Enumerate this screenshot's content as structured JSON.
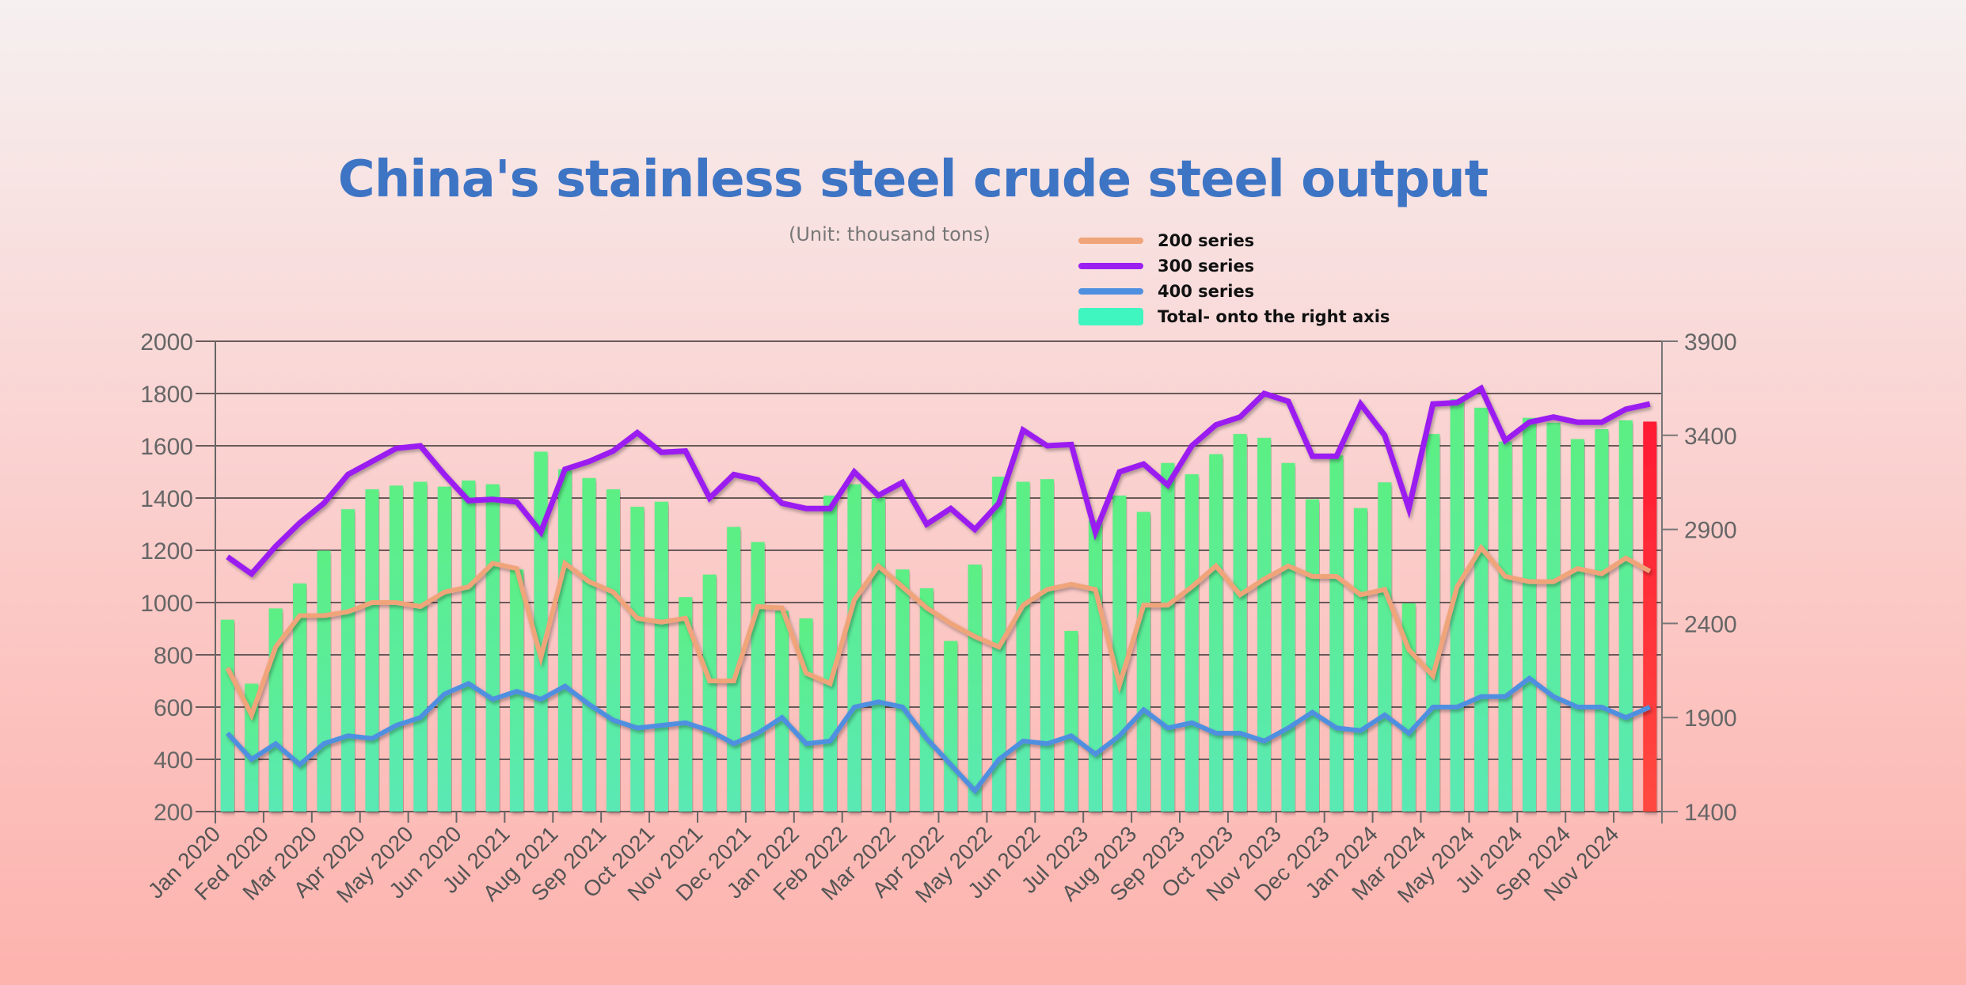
{
  "chart_data": {
    "type": "bar+line",
    "title": "China's stainless steel crude steel output",
    "subtitle": "(Unit: thousand tons)",
    "left_axis": {
      "ylim": [
        200,
        2000
      ],
      "ticks": [
        200,
        400,
        600,
        800,
        1000,
        1200,
        1400,
        1600,
        1800,
        2000
      ]
    },
    "right_axis": {
      "ylim": [
        1400,
        3900
      ],
      "ticks": [
        1400,
        1900,
        2400,
        2900,
        3400,
        3900
      ]
    },
    "x_tick_labels": [
      "Jan 2020",
      "Fed 2020",
      "Mar 2020",
      "Apr 2020",
      "May 2020",
      "Jun 2020",
      "Jul 2021",
      "Aug 2021",
      "Sep 2021",
      "Oct 2021",
      "Nov 2021",
      "Dec 2021",
      "Jan 2022",
      "Feb 2022",
      "Mar 2022",
      "Apr 2022",
      "May 2022",
      "Jun 2022",
      "Jul 2023",
      "Aug 2023",
      "Sep 2023",
      "Oct 2023",
      "Nov 2023",
      "Dec 2023",
      "Jan 2024",
      "Mar 2024",
      "May 2024",
      "Jul 2024",
      "Sep 2024",
      "Nov 2024"
    ],
    "legend_position": "top-right",
    "grid": true,
    "series": [
      {
        "name": "200 series",
        "axis": "left",
        "type": "line",
        "color": "#f0a47a",
        "values": [
          750,
          570,
          830,
          950,
          950,
          965,
          1000,
          1000,
          985,
          1040,
          1060,
          1150,
          1130,
          790,
          1150,
          1080,
          1040,
          940,
          925,
          940,
          700,
          700,
          985,
          980,
          730,
          690,
          1010,
          1140,
          1060,
          980,
          920,
          870,
          830,
          990,
          1050,
          1070,
          1050,
          685,
          990,
          990,
          1060,
          1140,
          1030,
          1090,
          1140,
          1100,
          1100,
          1030,
          1050,
          820,
          720,
          1060,
          1210,
          1100,
          1080,
          1080,
          1130,
          1110,
          1170,
          1120
        ]
      },
      {
        "name": "300 series",
        "axis": "left",
        "type": "line",
        "color": "#9b1ff0",
        "values": [
          1175,
          1110,
          1215,
          1305,
          1380,
          1490,
          1540,
          1590,
          1600,
          1490,
          1390,
          1395,
          1385,
          1270,
          1510,
          1540,
          1580,
          1650,
          1575,
          1580,
          1400,
          1490,
          1470,
          1380,
          1360,
          1360,
          1500,
          1410,
          1460,
          1300,
          1360,
          1280,
          1380,
          1660,
          1600,
          1605,
          1270,
          1500,
          1530,
          1450,
          1600,
          1680,
          1710,
          1800,
          1770,
          1560,
          1560,
          1760,
          1640,
          1360,
          1760,
          1765,
          1820,
          1620,
          1690,
          1710,
          1690,
          1690,
          1740,
          1760
        ]
      },
      {
        "name": "400 series",
        "axis": "left",
        "type": "line",
        "color": "#4f8fe0",
        "values": [
          500,
          400,
          460,
          380,
          460,
          490,
          480,
          530,
          560,
          650,
          690,
          630,
          660,
          630,
          680,
          610,
          550,
          520,
          530,
          540,
          510,
          460,
          500,
          560,
          460,
          470,
          600,
          620,
          600,
          480,
          380,
          280,
          400,
          470,
          460,
          490,
          420,
          490,
          590,
          520,
          540,
          500,
          500,
          470,
          520,
          580,
          520,
          510,
          570,
          500,
          600,
          600,
          640,
          640,
          710,
          640,
          600,
          600,
          560,
          600
        ]
      },
      {
        "name": "Total- onto the right axis",
        "axis": "right",
        "type": "bar",
        "color": "#5aedac",
        "highlight_last_color": "#ff2233",
        "values": [
          2420,
          2080,
          2480,
          2613,
          2787,
          3007,
          3113,
          3133,
          3153,
          3127,
          3160,
          3140,
          2687,
          3313,
          3220,
          3173,
          3113,
          3020,
          3047,
          2540,
          2660,
          2913,
          2833,
          2467,
          2427,
          3080,
          3140,
          3067,
          2687,
          2587,
          2307,
          2713,
          3180,
          3153,
          3167,
          2360,
          2947,
          3080,
          2993,
          3253,
          3193,
          3300,
          3407,
          3387,
          3253,
          3060,
          3293,
          3013,
          3150,
          2507,
          3407,
          3593,
          3547,
          3367,
          3493,
          3467,
          3380,
          3433,
          3480,
          3473
        ]
      }
    ]
  }
}
